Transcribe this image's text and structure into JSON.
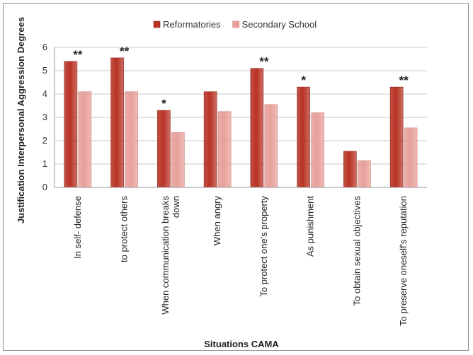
{
  "chart_data": {
    "type": "bar",
    "title": "",
    "xlabel": "Situations CAMA",
    "ylabel": "Justification Interpersonal Aggression Degrees",
    "ylim": [
      0,
      6
    ],
    "yticks": [
      "0",
      "1",
      "2",
      "3",
      "4",
      "5",
      "6"
    ],
    "grid": true,
    "legend_position": "top",
    "categories": [
      "In self- defense",
      "to protect others",
      "When communication breaks down",
      "When angry",
      "To protect one's property",
      "As punishment",
      "To obtain sexual objectives",
      "To preserve oneself's reputation"
    ],
    "category_lines": [
      [
        "In self- defense"
      ],
      [
        "to protect others"
      ],
      [
        "When communication breaks",
        "down"
      ],
      [
        "When angry"
      ],
      [
        "To protect one's property"
      ],
      [
        "As punishment"
      ],
      [
        "To obtain sexual objectives"
      ],
      [
        "To preserve oneself's reputation"
      ]
    ],
    "series": [
      {
        "name": "Reformatories",
        "color": "#b83224",
        "values": [
          5.4,
          5.55,
          3.3,
          4.1,
          5.1,
          4.3,
          1.55,
          4.3
        ]
      },
      {
        "name": "Secondary School",
        "color": "#e8a09a",
        "values": [
          4.1,
          4.1,
          2.35,
          3.25,
          3.55,
          3.2,
          1.15,
          2.55
        ]
      }
    ],
    "significance": [
      "**",
      "**",
      "*",
      "",
      "**",
      "*",
      "",
      "**"
    ]
  }
}
